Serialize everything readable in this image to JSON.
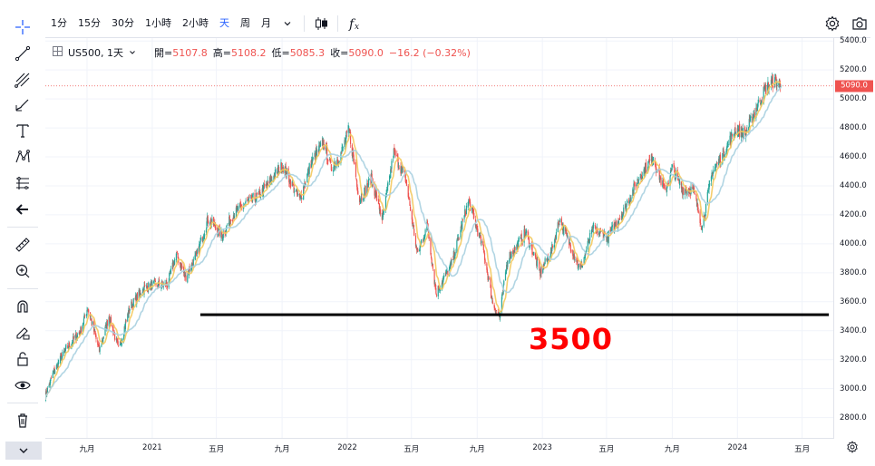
{
  "toolbar": {
    "timeframes": [
      "1分",
      "15分",
      "30分",
      "1小時",
      "2小時",
      "天",
      "周",
      "月"
    ],
    "active_timeframe": "天",
    "dropdown_icon": "chevron-down-icon",
    "chart_type_icon": "candles-icon",
    "indicators_icon": "fx-icon",
    "settings_icon": "gear-icon",
    "snapshot_icon": "camera-icon"
  },
  "legend": {
    "symbol": "US500, 1天",
    "open_label": "開=",
    "open": "5107.8",
    "high_label": "高=",
    "high": "5108.2",
    "low_label": "低=",
    "low": "5085.3",
    "close_label": "收=",
    "close": "5090.0",
    "change": "−16.2 (−0.32%)"
  },
  "last_price": "5090.0",
  "annotation": "3500",
  "colors": {
    "up": "#26a69a",
    "down": "#ef5350",
    "ma_fast": "#f4c95d",
    "ma_slow": "#a8d0e0",
    "accent": "#2962ff",
    "annotation": "#ff0000"
  },
  "chart_data": {
    "type": "candlestick",
    "symbol": "US500",
    "interval": "1天",
    "ylim": [
      2660,
      5420
    ],
    "y_ticks": [
      2800,
      3000,
      3200,
      3400,
      3600,
      3800,
      4000,
      4200,
      4400,
      4600,
      4800,
      5000,
      5200,
      5400
    ],
    "y_tick_labels": [
      "2800.0",
      "3000.0",
      "3200.0",
      "3400.0",
      "3600.0",
      "3800.0",
      "4000.0",
      "4200.0",
      "4400.0",
      "4600.0",
      "4800.0",
      "5000.0",
      "5200.0",
      "5400.0"
    ],
    "x_range": [
      "2020-06-15",
      "2024-06-30"
    ],
    "x_ticks": [
      {
        "date": "2020-09-01",
        "label": "九月"
      },
      {
        "date": "2021-01-01",
        "label": "2021"
      },
      {
        "date": "2021-05-01",
        "label": "五月"
      },
      {
        "date": "2021-09-01",
        "label": "九月"
      },
      {
        "date": "2022-01-01",
        "label": "2022"
      },
      {
        "date": "2022-05-01",
        "label": "五月"
      },
      {
        "date": "2022-09-01",
        "label": "九月"
      },
      {
        "date": "2023-01-01",
        "label": "2023"
      },
      {
        "date": "2023-05-01",
        "label": "五月"
      },
      {
        "date": "2023-09-01",
        "label": "九月"
      },
      {
        "date": "2024-01-01",
        "label": "2024"
      },
      {
        "date": "2024-05-01",
        "label": "五月"
      }
    ],
    "price_path": [
      [
        "2020-06-15",
        2950
      ],
      [
        "2020-07-01",
        3120
      ],
      [
        "2020-07-20",
        3250
      ],
      [
        "2020-08-05",
        3330
      ],
      [
        "2020-08-20",
        3400
      ],
      [
        "2020-09-02",
        3560
      ],
      [
        "2020-09-24",
        3260
      ],
      [
        "2020-10-12",
        3500
      ],
      [
        "2020-10-30",
        3270
      ],
      [
        "2020-11-20",
        3560
      ],
      [
        "2020-12-15",
        3690
      ],
      [
        "2021-01-05",
        3720
      ],
      [
        "2021-01-29",
        3715
      ],
      [
        "2021-02-15",
        3930
      ],
      [
        "2021-03-04",
        3770
      ],
      [
        "2021-03-25",
        3920
      ],
      [
        "2021-04-15",
        4170
      ],
      [
        "2021-05-12",
        4060
      ],
      [
        "2021-06-01",
        4200
      ],
      [
        "2021-06-25",
        4280
      ],
      [
        "2021-07-20",
        4330
      ],
      [
        "2021-08-15",
        4460
      ],
      [
        "2021-09-02",
        4540
      ],
      [
        "2021-10-04",
        4300
      ],
      [
        "2021-10-25",
        4560
      ],
      [
        "2021-11-18",
        4700
      ],
      [
        "2021-12-01",
        4520
      ],
      [
        "2021-12-20",
        4620
      ],
      [
        "2022-01-04",
        4790
      ],
      [
        "2022-01-24",
        4300
      ],
      [
        "2022-02-15",
        4450
      ],
      [
        "2022-03-08",
        4170
      ],
      [
        "2022-03-29",
        4630
      ],
      [
        "2022-04-20",
        4450
      ],
      [
        "2022-05-12",
        3930
      ],
      [
        "2022-05-31",
        4130
      ],
      [
        "2022-06-16",
        3660
      ],
      [
        "2022-07-15",
        3860
      ],
      [
        "2022-08-16",
        4300
      ],
      [
        "2022-09-13",
        3950
      ],
      [
        "2022-09-30",
        3590
      ],
      [
        "2022-10-13",
        3500
      ],
      [
        "2022-10-28",
        3900
      ],
      [
        "2022-11-15",
        3990
      ],
      [
        "2022-12-01",
        4080
      ],
      [
        "2022-12-28",
        3800
      ],
      [
        "2023-01-20",
        3970
      ],
      [
        "2023-02-02",
        4170
      ],
      [
        "2023-03-13",
        3820
      ],
      [
        "2023-04-05",
        4100
      ],
      [
        "2023-05-04",
        4050
      ],
      [
        "2023-06-01",
        4220
      ],
      [
        "2023-06-30",
        4450
      ],
      [
        "2023-07-27",
        4600
      ],
      [
        "2023-08-18",
        4360
      ],
      [
        "2023-09-01",
        4520
      ],
      [
        "2023-09-20",
        4380
      ],
      [
        "2023-10-10",
        4370
      ],
      [
        "2023-10-27",
        4120
      ],
      [
        "2023-11-15",
        4500
      ],
      [
        "2023-12-01",
        4590
      ],
      [
        "2023-12-28",
        4790
      ],
      [
        "2024-01-16",
        4760
      ],
      [
        "2024-02-01",
        4900
      ],
      [
        "2024-02-22",
        5070
      ],
      [
        "2024-03-08",
        5120
      ],
      [
        "2024-03-18",
        5110
      ],
      [
        "2024-03-22",
        5090
      ]
    ],
    "horizontal_line": {
      "price": 3510,
      "from": "2021-04-01",
      "to": "2024-06-20",
      "color": "#000000"
    }
  }
}
